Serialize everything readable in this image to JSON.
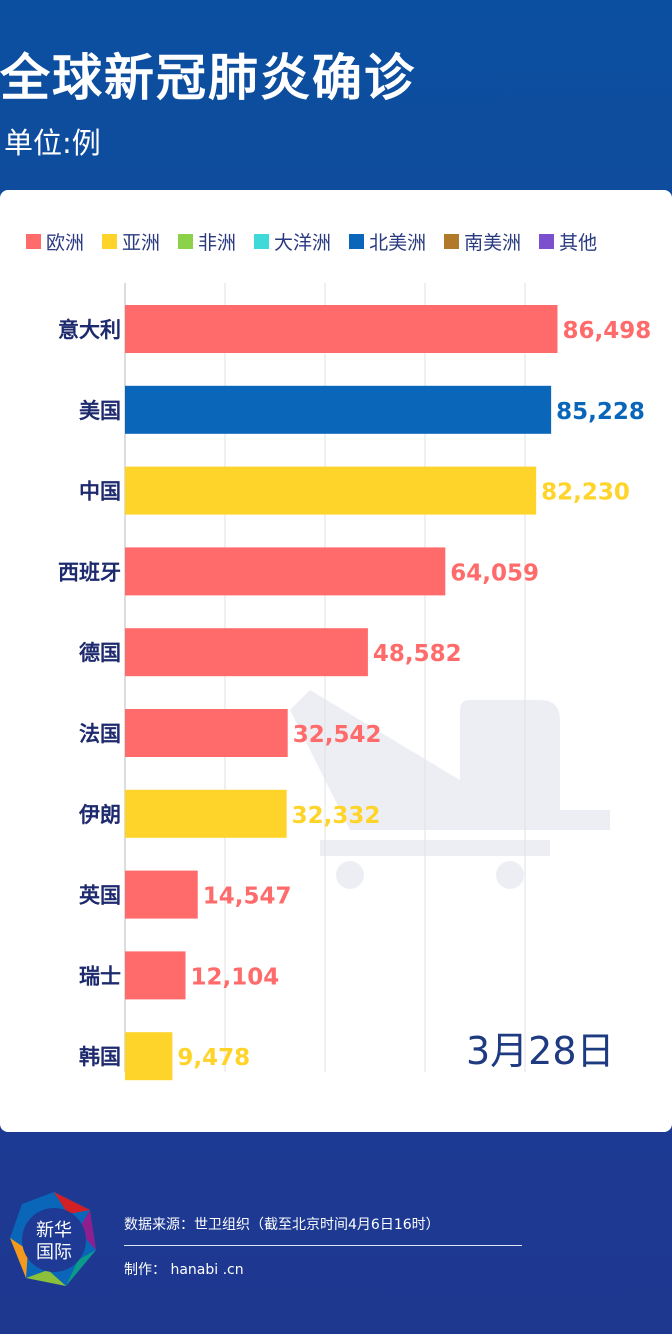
{
  "header": {
    "title": "全球新冠肺炎确诊",
    "unit": "单位:例"
  },
  "legend": [
    {
      "label": "欧洲",
      "color": "#ff6b6b"
    },
    {
      "label": "亚洲",
      "color": "#ffd42a"
    },
    {
      "label": "非洲",
      "color": "#8cd14a"
    },
    {
      "label": "大洋洲",
      "color": "#3fd9d9"
    },
    {
      "label": "北美洲",
      "color": "#0a66b8"
    },
    {
      "label": "南美洲",
      "color": "#b07a2a"
    },
    {
      "label": "其他",
      "color": "#7b4fce"
    }
  ],
  "chart_data": {
    "type": "bar",
    "orientation": "horizontal",
    "categories": [
      "意大利",
      "美国",
      "中国",
      "西班牙",
      "德国",
      "法国",
      "伊朗",
      "英国",
      "瑞士",
      "韩国"
    ],
    "values": [
      86498,
      85228,
      82230,
      64059,
      48582,
      32542,
      32332,
      14547,
      12104,
      9478
    ],
    "value_labels": [
      "86,498",
      "85,228",
      "82,230",
      "64,059",
      "48,582",
      "32,542",
      "32,332",
      "14,547",
      "12,104",
      "9,478"
    ],
    "region": [
      "欧洲",
      "北美洲",
      "亚洲",
      "欧洲",
      "欧洲",
      "欧洲",
      "亚洲",
      "欧洲",
      "欧洲",
      "亚洲"
    ],
    "xlim": [
      0,
      100000
    ],
    "grid": true,
    "legend_position": "top",
    "annotation": "3月28日"
  },
  "footer": {
    "logo_text": "新华国际",
    "source": "数据来源：世卫组织（截至北京时间4月6日16时）",
    "maker": "制作： hanabi .cn"
  }
}
